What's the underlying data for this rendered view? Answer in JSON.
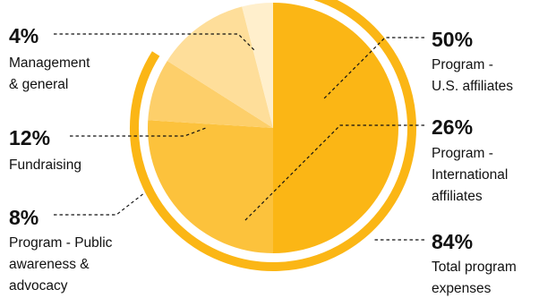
{
  "chart_data": {
    "type": "pie",
    "slices": [
      {
        "percent": "50%",
        "value": 50,
        "label_lines": [
          "Program -",
          "U.S. affiliates"
        ],
        "color": "#FBB615"
      },
      {
        "percent": "26%",
        "value": 26,
        "label_lines": [
          "Program -",
          "International",
          "affiliates"
        ],
        "color": "#FCC23C"
      },
      {
        "percent": "8%",
        "value": 8,
        "label_lines": [
          "Program - Public",
          "awareness &",
          "advocacy"
        ],
        "color": "#FDCF6A"
      },
      {
        "percent": "12%",
        "value": 12,
        "label_lines": [
          "Fundraising"
        ],
        "color": "#FEDE9A"
      },
      {
        "percent": "4%",
        "value": 4,
        "label_lines": [
          "Management",
          "& general"
        ],
        "color": "#FFEFCC"
      }
    ],
    "highlight_arc": {
      "percent": "84%",
      "value": 84,
      "label_lines": [
        "Total program",
        "expenses"
      ],
      "color": "#FBB615"
    }
  }
}
